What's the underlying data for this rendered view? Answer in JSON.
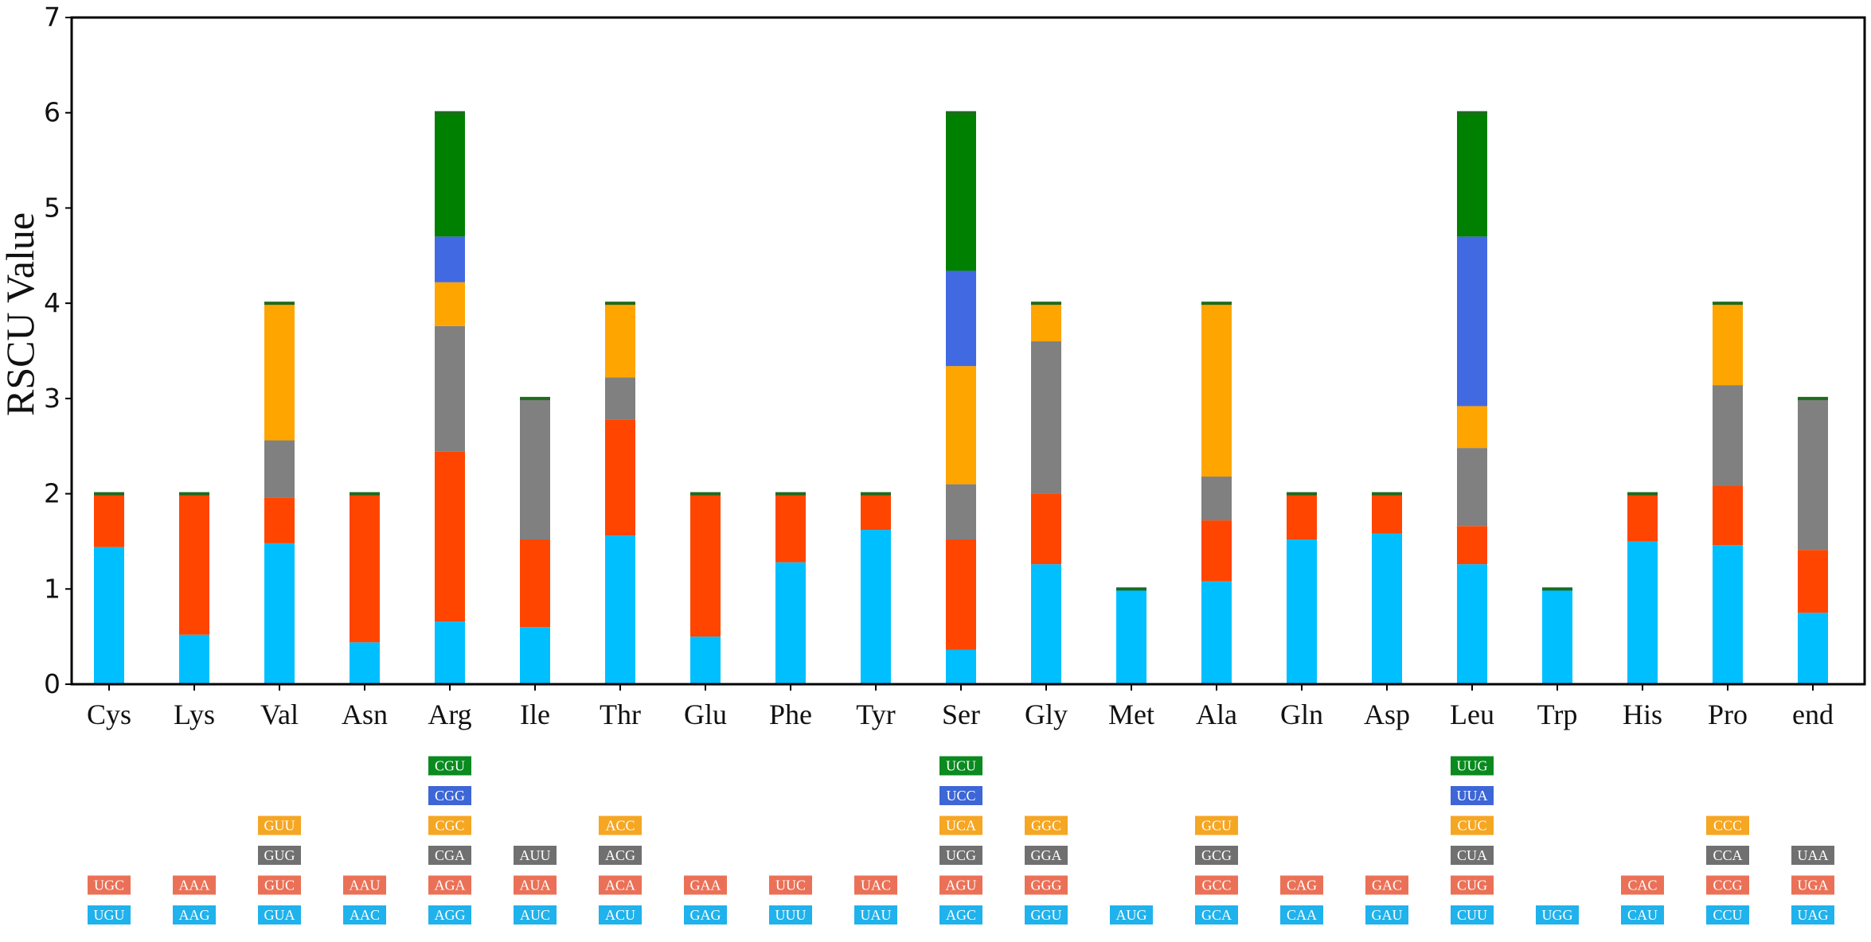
{
  "chart_data": {
    "type": "bar",
    "stacked": true,
    "ylabel": "RSCU Value",
    "xlabel": "",
    "ylim": [
      0,
      7
    ],
    "yticks": [
      0,
      1,
      2,
      3,
      4,
      5,
      6,
      7
    ],
    "layer_colors": [
      "#00BFFF",
      "#FF4500",
      "#808080",
      "#FFA500",
      "#4169E1",
      "#008000"
    ],
    "label_colors": [
      "#1FB2EC",
      "#EA7157",
      "#707070",
      "#F5A623",
      "#3D66D6",
      "#0A8A1F"
    ],
    "categories": [
      "Cys",
      "Lys",
      "Val",
      "Asn",
      "Arg",
      "Ile",
      "Thr",
      "Glu",
      "Phe",
      "Tyr",
      "Ser",
      "Gly",
      "Met",
      "Ala",
      "Gln",
      "Asp",
      "Leu",
      "Trp",
      "His",
      "Pro",
      "end"
    ],
    "stacks": [
      {
        "values": [
          1.44,
          0.56
        ],
        "codons": [
          "UGU",
          "UGC"
        ]
      },
      {
        "values": [
          0.52,
          1.48
        ],
        "codons": [
          "AAG",
          "AAA"
        ]
      },
      {
        "values": [
          1.48,
          0.48,
          0.6,
          1.44
        ],
        "codons": [
          "GUA",
          "GUC",
          "GUG",
          "GUU"
        ]
      },
      {
        "values": [
          0.44,
          1.56
        ],
        "codons": [
          "AAC",
          "AAU"
        ]
      },
      {
        "values": [
          0.66,
          1.78,
          1.32,
          0.46,
          0.48,
          1.3
        ],
        "codons": [
          "AGG",
          "AGA",
          "CGA",
          "CGC",
          "CGG",
          "CGU"
        ]
      },
      {
        "values": [
          0.6,
          0.92,
          1.48
        ],
        "codons": [
          "AUC",
          "AUA",
          "AUU"
        ]
      },
      {
        "values": [
          1.56,
          1.22,
          0.44,
          0.78
        ],
        "codons": [
          "ACU",
          "ACA",
          "ACG",
          "ACC"
        ]
      },
      {
        "values": [
          0.5,
          1.5
        ],
        "codons": [
          "GAG",
          "GAA"
        ]
      },
      {
        "values": [
          1.28,
          0.72
        ],
        "codons": [
          "UUU",
          "UUC"
        ]
      },
      {
        "values": [
          1.62,
          0.38
        ],
        "codons": [
          "UAU",
          "UAC"
        ]
      },
      {
        "values": [
          0.36,
          1.16,
          0.58,
          1.24,
          1.0,
          1.66
        ],
        "codons": [
          "AGC",
          "AGU",
          "UCG",
          "UCA",
          "UCC",
          "UCU"
        ]
      },
      {
        "values": [
          1.26,
          0.74,
          1.6,
          0.4
        ],
        "codons": [
          "GGU",
          "GGG",
          "GGA",
          "GGC"
        ]
      },
      {
        "values": [
          1.0
        ],
        "codons": [
          "AUG"
        ]
      },
      {
        "values": [
          1.08,
          0.64,
          0.46,
          1.82
        ],
        "codons": [
          "GCA",
          "GCC",
          "GCG",
          "GCU"
        ]
      },
      {
        "values": [
          1.52,
          0.48
        ],
        "codons": [
          "CAA",
          "CAG"
        ]
      },
      {
        "values": [
          1.58,
          0.42
        ],
        "codons": [
          "GAU",
          "GAC"
        ]
      },
      {
        "values": [
          1.26,
          0.4,
          0.82,
          0.44,
          1.78,
          1.3
        ],
        "codons": [
          "CUU",
          "CUG",
          "CUA",
          "CUC",
          "UUA",
          "UUG"
        ]
      },
      {
        "values": [
          1.0
        ],
        "codons": [
          "UGG"
        ]
      },
      {
        "values": [
          1.5,
          0.5
        ],
        "codons": [
          "CAU",
          "CAC"
        ]
      },
      {
        "values": [
          1.46,
          0.62,
          1.06,
          0.86
        ],
        "codons": [
          "CCU",
          "CCG",
          "CCA",
          "CCC"
        ]
      },
      {
        "values": [
          0.75,
          0.66,
          1.59
        ],
        "codons": [
          "UAG",
          "UGA",
          "UAA"
        ]
      }
    ]
  }
}
